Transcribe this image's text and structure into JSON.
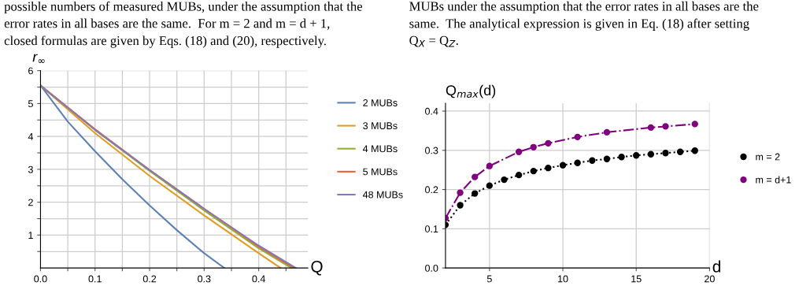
{
  "chart_data": [
    {
      "type": "line",
      "xlabel": "Q",
      "ylabel": "r$_{∞}$",
      "annotations": [
        "possible numbers of measured MUBs, under the assumption that the",
        "error rates in all bases are the same.  For m = 2 and m = d + 1,",
        "closed formulas are given by Eqs. (18) and (20), respectively."
      ],
      "xlim": [
        0,
        0.49
      ],
      "ylim": [
        0,
        6
      ],
      "xticks": [
        {
          "value": 0,
          "label": "0.0"
        },
        {
          "value": 0.05,
          "label": null
        },
        0.1,
        {
          "value": 0.15,
          "label": null
        },
        0.2,
        {
          "value": 0.25,
          "label": null
        },
        0.3,
        {
          "value": 0.35,
          "label": null
        },
        0.4,
        {
          "value": 0.45,
          "label": null
        }
      ],
      "yticks": [
        {
          "value": 0.5,
          "label": null
        },
        1,
        {
          "value": 1.5,
          "label": null
        },
        2,
        {
          "value": 2.5,
          "label": null
        },
        3,
        {
          "value": 3.5,
          "label": null
        },
        4,
        {
          "value": 4.5,
          "label": null
        },
        5,
        {
          "value": 5.5,
          "label": null
        },
        6
      ],
      "grid": true,
      "legend": "right",
      "marker": "none",
      "line_style": "solid",
      "series": [
        {
          "name": "2 MUBs",
          "color": "#5e81b5",
          "x": [
            0,
            0.05,
            0.1,
            0.15,
            0.2,
            0.25,
            0.3,
            0.337
          ],
          "values": [
            5.55,
            4.45,
            3.55,
            2.7,
            1.9,
            1.15,
            0.45,
            0
          ]
        },
        {
          "name": "3 MUBs",
          "color": "#e19c24",
          "x": [
            0,
            0.1,
            0.2,
            0.3,
            0.4,
            0.44
          ],
          "values": [
            5.55,
            4.1,
            2.8,
            1.6,
            0.45,
            0
          ]
        },
        {
          "name": "4 MUBs",
          "color": "#8fb032",
          "x": [
            0,
            0.1,
            0.2,
            0.3,
            0.4,
            0.46
          ],
          "values": [
            5.55,
            4.2,
            2.95,
            1.75,
            0.6,
            0
          ]
        },
        {
          "name": "5 MUBs",
          "color": "#eb6235",
          "x": [
            0,
            0.1,
            0.2,
            0.3,
            0.4,
            0.465
          ],
          "values": [
            5.55,
            4.22,
            2.98,
            1.8,
            0.65,
            0
          ]
        },
        {
          "name": "48 MUBs",
          "color": "#8778b3",
          "x": [
            0,
            0.1,
            0.2,
            0.3,
            0.4,
            0.468
          ],
          "values": [
            5.55,
            4.2,
            2.98,
            1.8,
            0.68,
            0
          ]
        }
      ]
    },
    {
      "type": "line",
      "xlabel": "d",
      "ylabel": "Q$_{max}$(d)",
      "annotations": [
        "MUBs under the assumption that the error rates in all bases are the",
        "same.  The analytical expression is given in Eq. (18) after setting",
        "Q$_{X}$ = Q$_{Z}$."
      ],
      "xlim": [
        2,
        20
      ],
      "ylim": [
        0,
        0.42
      ],
      "xticks": [
        5,
        10,
        15,
        20
      ],
      "yticks": [
        {
          "value": 0,
          "label": "0.0"
        },
        0.1,
        0.2,
        0.3,
        0.4
      ],
      "grid": true,
      "legend": "right",
      "marker": "circle",
      "series": [
        {
          "name": "m = 2",
          "color": "#000000",
          "line_style": "dotted",
          "x": [
            2,
            3,
            4,
            5,
            6,
            7,
            8,
            9,
            10,
            11,
            12,
            13,
            14,
            15,
            16,
            17,
            18,
            19
          ],
          "values": [
            0.11,
            0.16,
            0.19,
            0.21,
            0.225,
            0.237,
            0.247,
            0.255,
            0.262,
            0.268,
            0.274,
            0.278,
            0.283,
            0.287,
            0.29,
            0.293,
            0.296,
            0.299
          ]
        },
        {
          "name": "m = d+1",
          "color": "#800080",
          "line_style": "dashdot",
          "x": [
            2,
            3,
            4,
            5,
            7,
            8,
            9,
            11,
            13,
            16,
            17,
            19
          ],
          "values": [
            0.127,
            0.192,
            0.232,
            0.26,
            0.296,
            0.308,
            0.318,
            0.334,
            0.346,
            0.358,
            0.361,
            0.367
          ]
        }
      ]
    }
  ]
}
